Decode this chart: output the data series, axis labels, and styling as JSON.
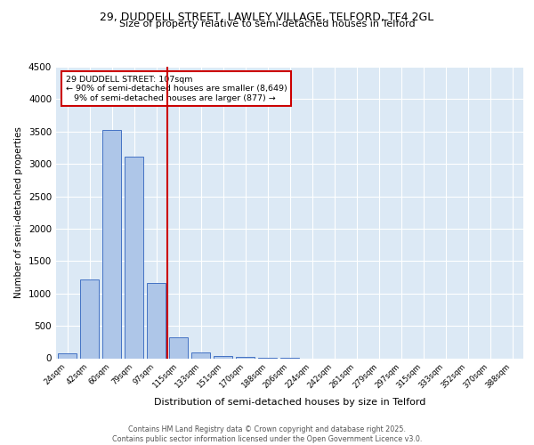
{
  "title_line1": "29, DUDDELL STREET, LAWLEY VILLAGE, TELFORD, TF4 2GL",
  "title_line2": "Size of property relative to semi-detached houses in Telford",
  "xlabel": "Distribution of semi-detached houses by size in Telford",
  "ylabel": "Number of semi-detached properties",
  "bin_labels": [
    "24sqm",
    "42sqm",
    "60sqm",
    "79sqm",
    "97sqm",
    "115sqm",
    "133sqm",
    "151sqm",
    "170sqm",
    "188sqm",
    "206sqm",
    "224sqm",
    "242sqm",
    "261sqm",
    "279sqm",
    "297sqm",
    "315sqm",
    "333sqm",
    "352sqm",
    "370sqm",
    "388sqm"
  ],
  "bar_heights": [
    75,
    1220,
    3520,
    3110,
    1160,
    320,
    90,
    40,
    20,
    5,
    2,
    0,
    0,
    0,
    0,
    0,
    0,
    0,
    0,
    0,
    0
  ],
  "bar_color": "#aec6e8",
  "bar_edge_color": "#4472c4",
  "bg_color": "#dce9f5",
  "grid_color": "#ffffff",
  "vline_color": "#cc0000",
  "annotation_title": "29 DUDDELL STREET: 107sqm",
  "annotation_line1": "← 90% of semi-detached houses are smaller (8,649)",
  "annotation_line2": "9% of semi-detached houses are larger (877) →",
  "annotation_box_color": "#cc0000",
  "ylim": [
    0,
    4500
  ],
  "yticks": [
    0,
    500,
    1000,
    1500,
    2000,
    2500,
    3000,
    3500,
    4000,
    4500
  ],
  "footer_line1": "Contains HM Land Registry data © Crown copyright and database right 2025.",
  "footer_line2": "Contains public sector information licensed under the Open Government Licence v3.0."
}
